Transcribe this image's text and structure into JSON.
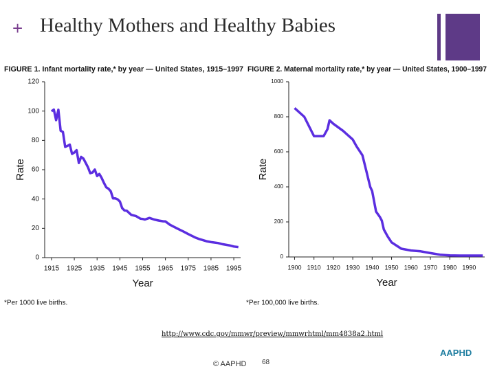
{
  "slide": {
    "title": "Healthy Mothers and Healthy Babies",
    "source_url": "http://www.cdc.gov/mmwr/preview/mmwrhtml/mm4838a2.html",
    "copyright": "© AAPHD",
    "page_number": "68",
    "logo_text": "AAPHD"
  },
  "chart_data": [
    {
      "type": "line",
      "title": "FIGURE 1. Infant mortality rate,* by year — United States, 1915–1997",
      "x_label": "Year",
      "y_label": "Rate",
      "footnote": "*Per 1000 live births.",
      "color": "#5b2ee0",
      "x": [
        1915,
        1916,
        1917,
        1918,
        1919,
        1920,
        1921,
        1922,
        1923,
        1924,
        1925,
        1926,
        1927,
        1928,
        1929,
        1930,
        1931,
        1932,
        1933,
        1934,
        1935,
        1936,
        1937,
        1938,
        1939,
        1940,
        1941,
        1942,
        1943,
        1944,
        1945,
        1946,
        1947,
        1948,
        1950,
        1952,
        1954,
        1955,
        1956,
        1958,
        1960,
        1962,
        1964,
        1965,
        1967,
        1970,
        1973,
        1975,
        1978,
        1980,
        1983,
        1985,
        1988,
        1990,
        1993,
        1995,
        1997
      ],
      "values": [
        99.9,
        101,
        93.8,
        100.9,
        86.6,
        85.8,
        75.6,
        76.2,
        77.1,
        70.8,
        71.7,
        73.3,
        64.6,
        68.7,
        67.6,
        64.6,
        61.6,
        57.6,
        58.1,
        60.1,
        55.7,
        57.1,
        54.4,
        51,
        48,
        47,
        45.3,
        40.4,
        40.4,
        39.8,
        38.3,
        33.8,
        32.2,
        32,
        29.2,
        28.4,
        26.6,
        26.4,
        26,
        27.1,
        26,
        25.3,
        24.8,
        24.7,
        22.4,
        20,
        17.7,
        16.1,
        13.8,
        12.6,
        11.2,
        10.6,
        10,
        9.2,
        8.4,
        7.6,
        7.2
      ],
      "xlim": [
        1912,
        1998
      ],
      "ylim": [
        0,
        120
      ],
      "xticks": [
        1915,
        1925,
        1935,
        1945,
        1955,
        1965,
        1975,
        1985,
        1995
      ],
      "yticks": [
        0,
        20,
        40,
        60,
        80,
        100,
        120
      ]
    },
    {
      "type": "line",
      "title": "FIGURE 2. Maternal mortality rate,* by year — United States, 1900–1997",
      "x_label": "Year",
      "y_label": "Rate",
      "footnote": "*Per 100,000 live births.",
      "color": "#5b2ee0",
      "x": [
        1900,
        1905,
        1910,
        1915,
        1917,
        1918,
        1920,
        1925,
        1929,
        1930,
        1932,
        1935,
        1937,
        1939,
        1940,
        1942,
        1944,
        1945,
        1946,
        1948,
        1950,
        1955,
        1960,
        1965,
        1970,
        1975,
        1980,
        1985,
        1990,
        1997
      ],
      "values": [
        850,
        800,
        690,
        690,
        730,
        780,
        760,
        720,
        680,
        670,
        630,
        580,
        490,
        400,
        376,
        259,
        228,
        207,
        157,
        117,
        83,
        47,
        37,
        32,
        22,
        13,
        9,
        8,
        8,
        8
      ],
      "xlim": [
        1897,
        1998
      ],
      "ylim": [
        0,
        1000
      ],
      "xticks": [
        1900,
        1910,
        1920,
        1930,
        1940,
        1950,
        1960,
        1970,
        1980,
        1990
      ],
      "yticks": [
        0,
        200,
        400,
        600,
        800,
        1000
      ]
    }
  ]
}
